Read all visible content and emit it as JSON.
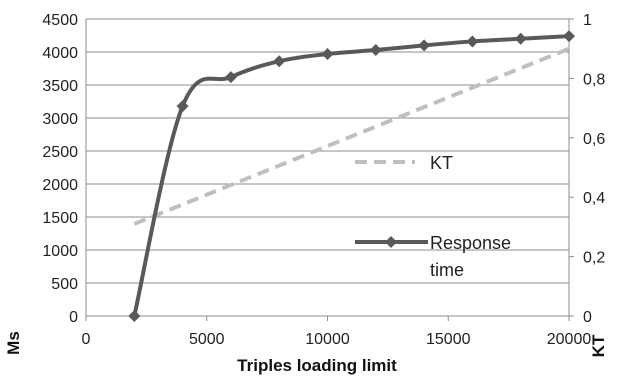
{
  "chart_data": {
    "type": "line",
    "xlabel": "Triples loading limit",
    "ylabel": "Ms",
    "y2label": "KT",
    "xlim": [
      0,
      20000
    ],
    "ylim": [
      0,
      4500
    ],
    "y2lim": [
      0,
      1
    ],
    "x_ticks": [
      "0",
      "5000",
      "10000",
      "15000",
      "20000"
    ],
    "y_ticks": [
      "0",
      "500",
      "1000",
      "1500",
      "2000",
      "2500",
      "3000",
      "3500",
      "4000",
      "4500"
    ],
    "y2_ticks": [
      "0",
      "0,2",
      "0,4",
      "0,6",
      "0,8",
      "1"
    ],
    "grid": "horizontal",
    "series": [
      {
        "name": "Response time",
        "axis": "left",
        "style": "solid-diamond",
        "color": "#595959",
        "x": [
          2000,
          4000,
          6000,
          8000,
          10000,
          12000,
          14000,
          16000,
          18000,
          20000
        ],
        "y": [
          0,
          3180,
          3620,
          3860,
          3970,
          4030,
          4100,
          4160,
          4200,
          4240
        ]
      },
      {
        "name": "KT",
        "axis": "right",
        "style": "dashed",
        "color": "#bfbfbf",
        "x": [
          2000,
          20000
        ],
        "y": [
          0.31,
          0.9
        ]
      }
    ]
  }
}
